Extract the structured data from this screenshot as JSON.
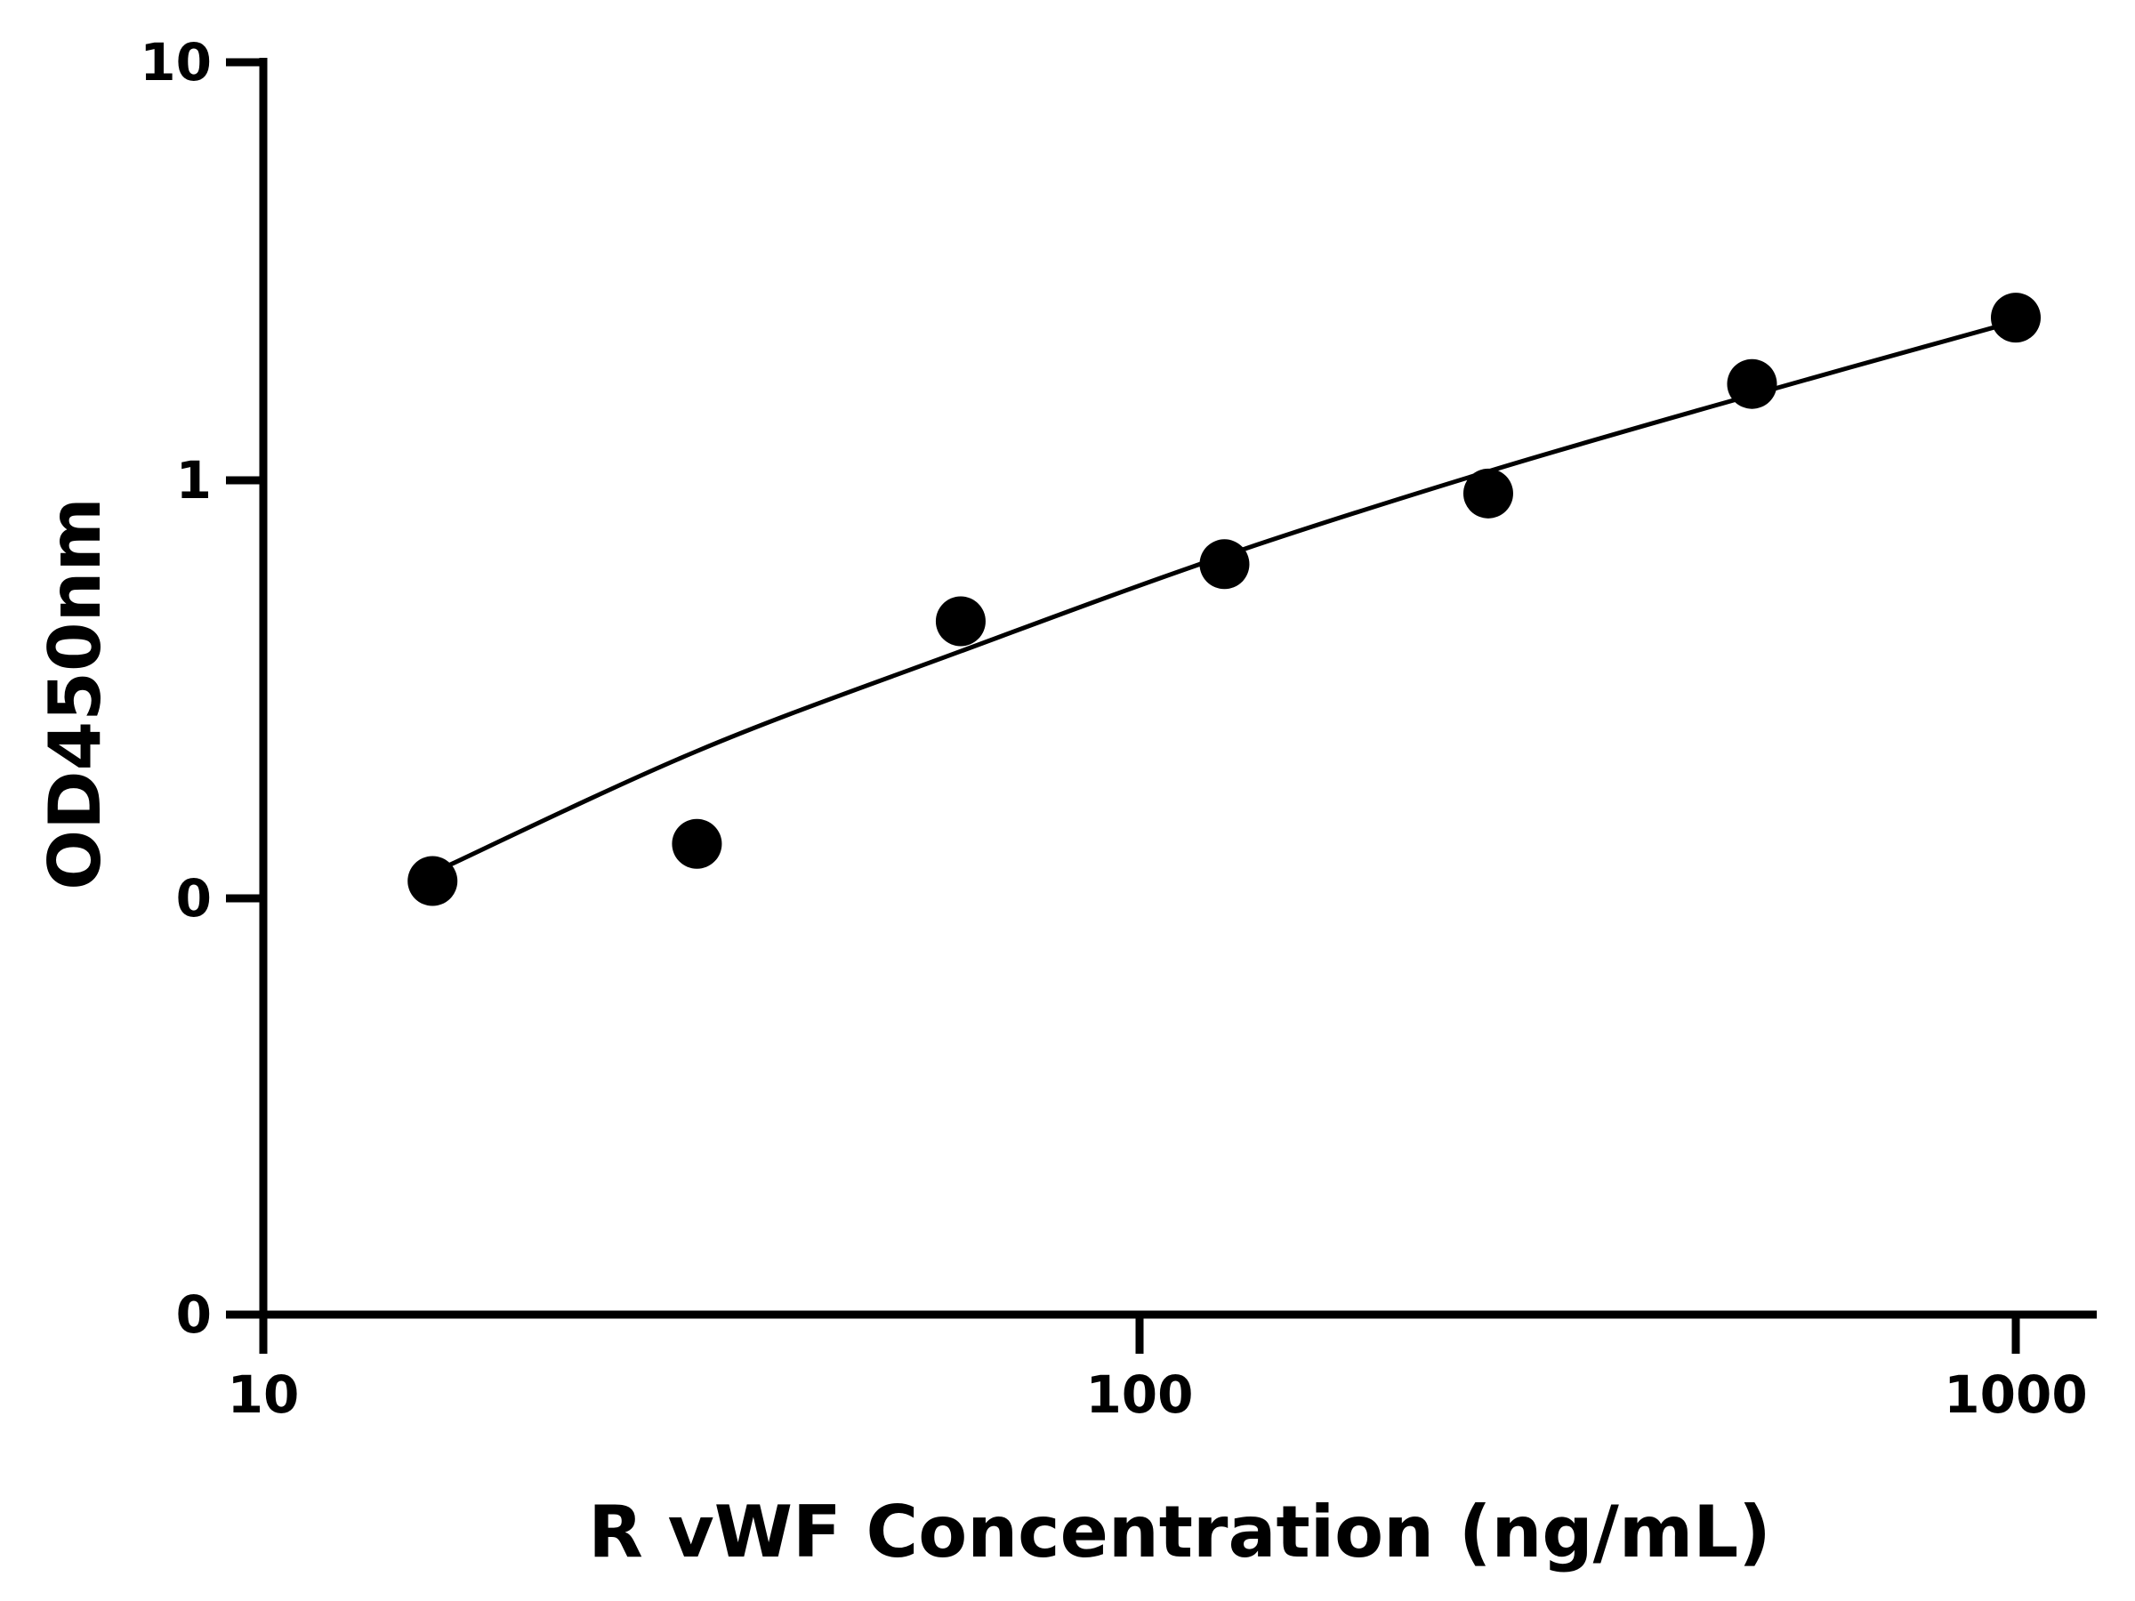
{
  "chart_data": {
    "type": "scatter",
    "title": "",
    "xlabel": "R vWF Concentration (ng/mL)",
    "ylabel": "OD450nm",
    "x_scale": "log",
    "xlim": [
      10,
      1100
    ],
    "x_ticks": [
      {
        "value": 10,
        "label": "10"
      },
      {
        "value": 100,
        "label": "100"
      },
      {
        "value": 1000,
        "label": "1000"
      }
    ],
    "y_ticks": [
      {
        "label": "0"
      },
      {
        "label": "0"
      },
      {
        "label": "1"
      },
      {
        "label": "10"
      }
    ],
    "points": [
      {
        "x": 15.6,
        "y": 0.11
      },
      {
        "x": 31.25,
        "y": 0.135
      },
      {
        "x": 62.5,
        "y": 0.46
      },
      {
        "x": 125,
        "y": 0.63
      },
      {
        "x": 250,
        "y": 0.93
      },
      {
        "x": 500,
        "y": 1.7
      },
      {
        "x": 1000,
        "y": 2.45
      }
    ],
    "fit_curve": [
      {
        "x": 15.6,
        "y": 0.115
      },
      {
        "x": 31.25,
        "y": 0.225
      },
      {
        "x": 62.5,
        "y": 0.39
      },
      {
        "x": 125,
        "y": 0.66
      },
      {
        "x": 250,
        "y": 1.05
      },
      {
        "x": 500,
        "y": 1.6
      },
      {
        "x": 1000,
        "y": 2.4
      }
    ],
    "grid": false,
    "legend": "none"
  }
}
